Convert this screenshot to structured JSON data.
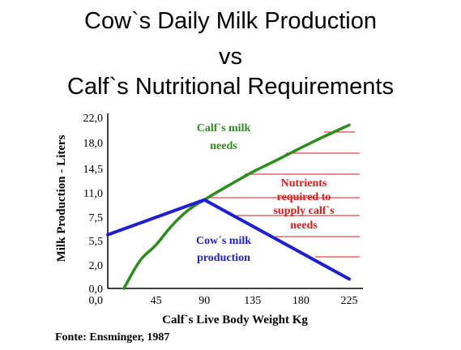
{
  "colors": {
    "green": "#2e8b1e",
    "blue": "#1f1fd0",
    "red": "#e01818",
    "axis": "#000000"
  },
  "chart_data": {
    "type": "line",
    "title_lines": [
      "Cow`s Daily Milk Production",
      "vs",
      "Calf`s Nutritional Requirements"
    ],
    "xlabel": "Calf`s Live Body Weight Kg",
    "ylabel": "Milk Production - Liters",
    "x_ticks": [
      "0,0",
      "45",
      "90",
      "135",
      "180",
      "225"
    ],
    "y_ticks": [
      "0,0",
      "2,0",
      "5,5",
      "7,5",
      "11,0",
      "14,5",
      "18,0",
      "22,0"
    ],
    "series": [
      {
        "name": "Calf`s milk needs",
        "color_key": "green",
        "x": [
          15,
          30,
          45,
          60,
          75,
          90,
          112,
          135,
          157,
          180,
          202,
          225
        ],
        "y": [
          0,
          2.6,
          4.9,
          6.8,
          8.5,
          10.0,
          12.0,
          14.0,
          15.6,
          17.3,
          19.0,
          20.8
        ]
      },
      {
        "name": "Cow´s milk production",
        "color_key": "blue",
        "x": [
          0,
          90,
          225
        ],
        "y": [
          6.0,
          10.0,
          0.8
        ]
      }
    ],
    "annotations": {
      "calf_label": [
        "Calf`s milk",
        "needs"
      ],
      "cow_label": [
        "Cow´s milk",
        "production"
      ],
      "nutrients_label": [
        "Nutrients",
        "required to",
        "supply calf`s",
        "needs"
      ]
    },
    "source": "Fonte: Ensminger, 1987"
  }
}
